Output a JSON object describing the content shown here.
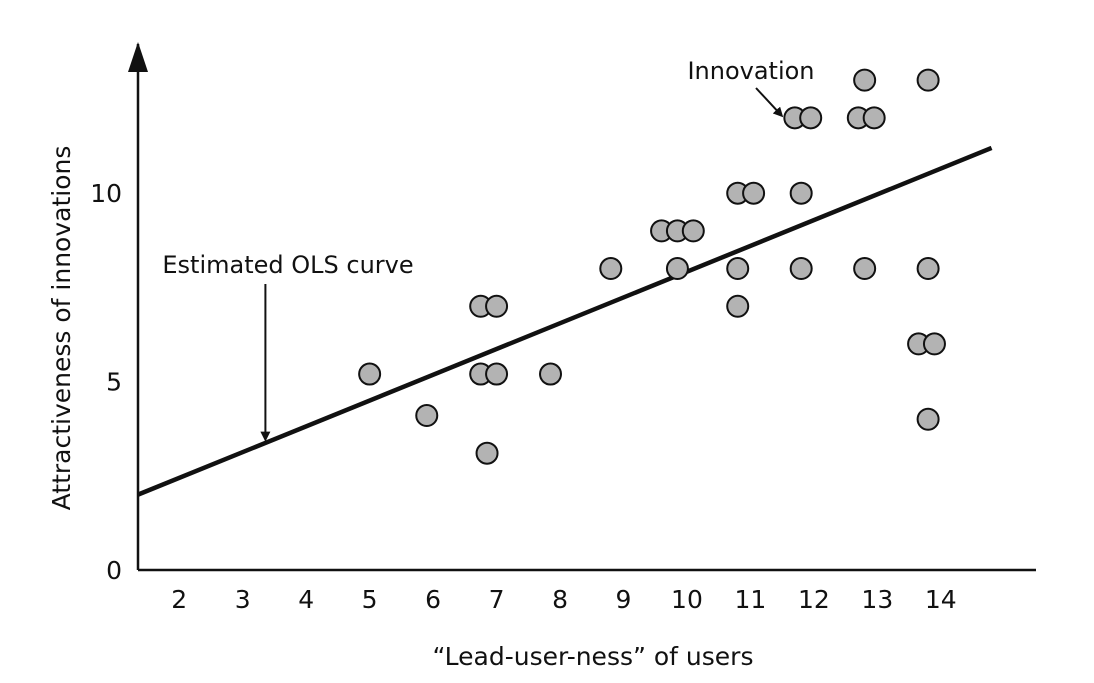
{
  "chart_data": {
    "type": "scatter",
    "xlabel": "“Lead-user-ness” of users",
    "ylabel": "Attractiveness of innovations",
    "xlim": [
      1.35,
      15.5
    ],
    "ylim": [
      0,
      13.8
    ],
    "xticks": [
      2,
      3,
      4,
      5,
      6,
      7,
      8,
      9,
      10,
      11,
      12,
      13,
      14
    ],
    "yticks": [
      0,
      5,
      10
    ],
    "grid": false,
    "legend": "none",
    "point_fill": "#b3b3b3",
    "point_stroke": "#111111",
    "line_color": "#111111",
    "series": [
      {
        "points": [
          [
            5.0,
            5.2
          ],
          [
            5.9,
            4.1
          ],
          [
            6.85,
            3.1
          ],
          [
            6.75,
            5.2
          ],
          [
            7.0,
            5.2
          ],
          [
            6.75,
            7.0
          ],
          [
            7.0,
            7.0
          ],
          [
            7.85,
            5.2
          ],
          [
            8.8,
            8.0
          ],
          [
            9.6,
            9.0
          ],
          [
            9.85,
            9.0
          ],
          [
            10.1,
            9.0
          ],
          [
            9.85,
            8.0
          ],
          [
            10.8,
            10.0
          ],
          [
            11.05,
            10.0
          ],
          [
            10.8,
            8.0
          ],
          [
            10.8,
            7.0
          ],
          [
            11.7,
            12.0
          ],
          [
            11.95,
            12.0
          ],
          [
            11.8,
            10.0
          ],
          [
            11.8,
            8.0
          ],
          [
            12.7,
            12.0
          ],
          [
            12.95,
            12.0
          ],
          [
            12.8,
            13.0
          ],
          [
            12.8,
            8.0
          ],
          [
            13.8,
            13.0
          ],
          [
            13.8,
            8.0
          ],
          [
            13.65,
            6.0
          ],
          [
            13.9,
            6.0
          ],
          [
            13.8,
            4.0
          ]
        ]
      }
    ],
    "ols_line": {
      "x": [
        1.35,
        14.8
      ],
      "y": [
        2.0,
        11.2
      ]
    },
    "annotations": [
      {
        "text": "Innovation",
        "target": [
          11.7,
          12.0
        ]
      },
      {
        "text": "Estimated OLS curve",
        "target": [
          3.2,
          3.3
        ]
      }
    ]
  }
}
